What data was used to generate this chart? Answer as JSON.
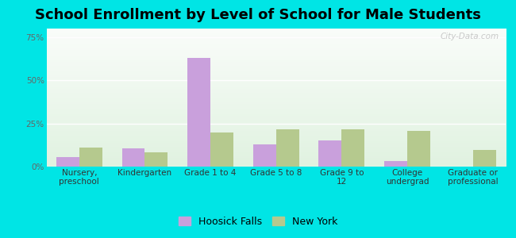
{
  "title": "School Enrollment by Level of School for Male Students",
  "categories": [
    "Nursery,\npreschool",
    "Kindergarten",
    "Grade 1 to 4",
    "Grade 5 to 8",
    "Grade 9 to\n12",
    "College\nundergrad",
    "Graduate or\nprofessional"
  ],
  "hoosick_falls": [
    5.5,
    10.5,
    63.0,
    13.0,
    15.0,
    3.0,
    0.0
  ],
  "new_york": [
    11.0,
    8.5,
    20.0,
    21.5,
    21.5,
    20.5,
    9.5
  ],
  "hoosick_color": "#c9a0dc",
  "new_york_color": "#b5c98e",
  "background_outer": "#00e5e5",
  "ylim": [
    0,
    80
  ],
  "yticks": [
    0,
    25,
    50,
    75
  ],
  "ytick_labels": [
    "0%",
    "25%",
    "50%",
    "75%"
  ],
  "title_fontsize": 13,
  "tick_fontsize": 7.5,
  "legend_fontsize": 9,
  "bar_width": 0.35,
  "watermark": "City-Data.com"
}
